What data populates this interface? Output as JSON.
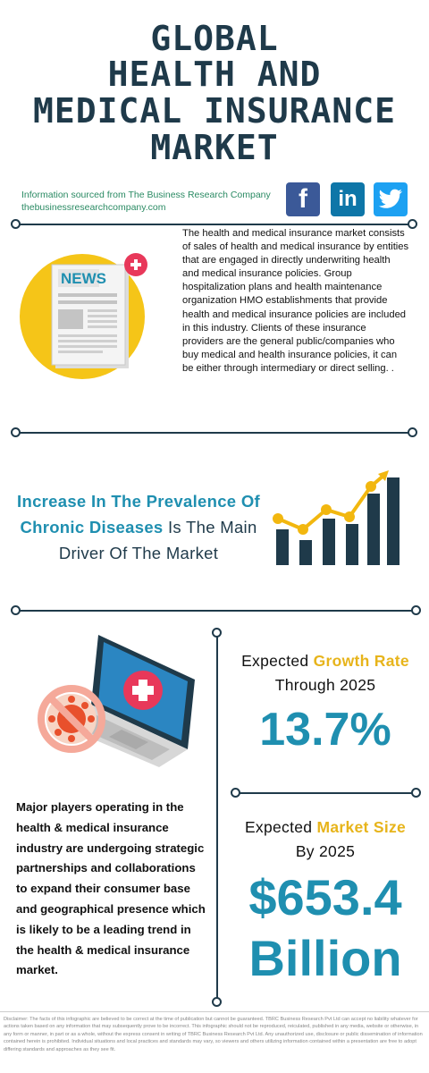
{
  "title": {
    "line1": "GLOBAL",
    "line2": "HEALTH AND",
    "line3": "MEDICAL INSURANCE",
    "line4": "MARKET"
  },
  "source": {
    "line1": "Information sourced from The Business Research Company",
    "line2": "thebusinessresearchcompany.com"
  },
  "social": {
    "facebook": "f",
    "linkedin": "in",
    "twitter": "twitter-bird"
  },
  "news_icon": {
    "label": "NEWS"
  },
  "description": "The health and medical insurance market consists of sales of health and medical insurance by entities  that are engaged in directly underwriting health and medical insurance policies. Group hospitalization plans and health maintenance organization HMO establishments  that provide health and medical insurance policies are included in this industry. Clients of these insurance providers are the general public/companies who buy medical and health insurance policies, it can be either through intermediary or direct selling. .",
  "driver": {
    "highlight1": "Increase In The Prevalence Of",
    "highlight2": "Chronic Diseases",
    "rest2": " Is The Main",
    "line3": "Driver Of The Market"
  },
  "growth": {
    "prefix": "Expected ",
    "accent": "Growth Rate",
    "line2": "Through 2025",
    "value": "13.7%"
  },
  "market_size": {
    "prefix": "Expected ",
    "accent": "Market Size",
    "line2": "By 2025",
    "value_line1": "$653.4",
    "value_line2": "Billion"
  },
  "players": "Major players operating in the health & medical insurance industry are undergoing strategic partnerships and collaborations to expand their consumer base and geographical presence which is likely to be a leading trend in the health & medical insurance market.",
  "disclaimer": "Disclaimer: The facts of this infographic are believed to be correct at the time of publication but cannot be guaranteed. TBRC Business Research Pvt Ltd can accept no liability whatever for actions taken based on any information that may subsequently prove to be incorrect. This infographic should not be reproduced, reiculated, published in any media, website or otherwise, in any form or manner, in part or as a whole, without the express consent in writing of TBRC Business Research Pvt Ltd. Any unauthorized use, disclosure or public dissemination of information contained herein is prohibited. Individual situations and local practices and standards may vary, so viewers and others utilizing information contained within a presentation are free to adopt differing standards and approaches as they see fit.",
  "colors": {
    "navy": "#1f3a4a",
    "teal": "#1f8fb0",
    "yellow": "#e7b41b",
    "green": "#2a8a63",
    "facebook": "#3b5998",
    "linkedin": "#0e76a8",
    "twitter": "#1da1f2"
  }
}
